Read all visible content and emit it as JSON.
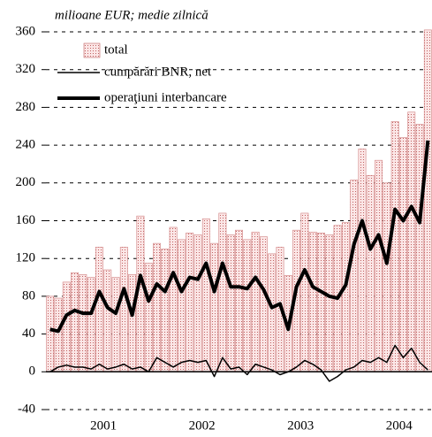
{
  "chart_data": {
    "type": "bar_line",
    "subtitle": "milioane EUR; medie zilnică",
    "categories": [
      null,
      null,
      null,
      null,
      null,
      null,
      null,
      "2001",
      null,
      null,
      null,
      null,
      null,
      null,
      null,
      null,
      null,
      null,
      null,
      "2002",
      null,
      null,
      null,
      null,
      null,
      null,
      null,
      null,
      null,
      null,
      null,
      "2003",
      null,
      null,
      null,
      null,
      null,
      null,
      null,
      null,
      null,
      null,
      null,
      "2004",
      null,
      null,
      null
    ],
    "series": [
      {
        "name": "total",
        "kind": "bar",
        "color": "#f4c6c6",
        "values": [
          80,
          78,
          95,
          105,
          103,
          100,
          132,
          108,
          100,
          132,
          103,
          165,
          115,
          136,
          130,
          153,
          140,
          147,
          145,
          162,
          136,
          168,
          145,
          150,
          140,
          148,
          143,
          125,
          132,
          102,
          150,
          168,
          148,
          147,
          145,
          155,
          158,
          203,
          236,
          208,
          224,
          200,
          265,
          248,
          275,
          262,
          362
        ]
      },
      {
        "name": "cumpărări BNR, net",
        "kind": "line",
        "color": "#000000",
        "values": [
          0,
          5,
          7,
          5,
          5,
          3,
          8,
          3,
          5,
          8,
          3,
          5,
          0,
          15,
          10,
          5,
          10,
          12,
          10,
          12,
          -5,
          15,
          3,
          5,
          -3,
          8,
          5,
          2,
          -3,
          0,
          5,
          12,
          8,
          2,
          -10,
          -5,
          2,
          5,
          12,
          10,
          15,
          10,
          28,
          15,
          25,
          10,
          2
        ]
      },
      {
        "name": "operaţiuni interbancare",
        "kind": "line_bold",
        "color": "#000000",
        "values": [
          45,
          43,
          60,
          65,
          62,
          62,
          85,
          68,
          62,
          88,
          60,
          102,
          75,
          93,
          85,
          105,
          85,
          100,
          98,
          115,
          85,
          115,
          90,
          90,
          88,
          100,
          87,
          68,
          72,
          45,
          90,
          108,
          90,
          85,
          80,
          78,
          92,
          135,
          160,
          130,
          145,
          115,
          172,
          160,
          175,
          158,
          245
        ]
      }
    ],
    "ylim": [
      -40,
      360
    ],
    "yticks": [
      -40,
      0,
      40,
      80,
      120,
      160,
      200,
      240,
      280,
      320,
      360
    ],
    "grid": true
  }
}
